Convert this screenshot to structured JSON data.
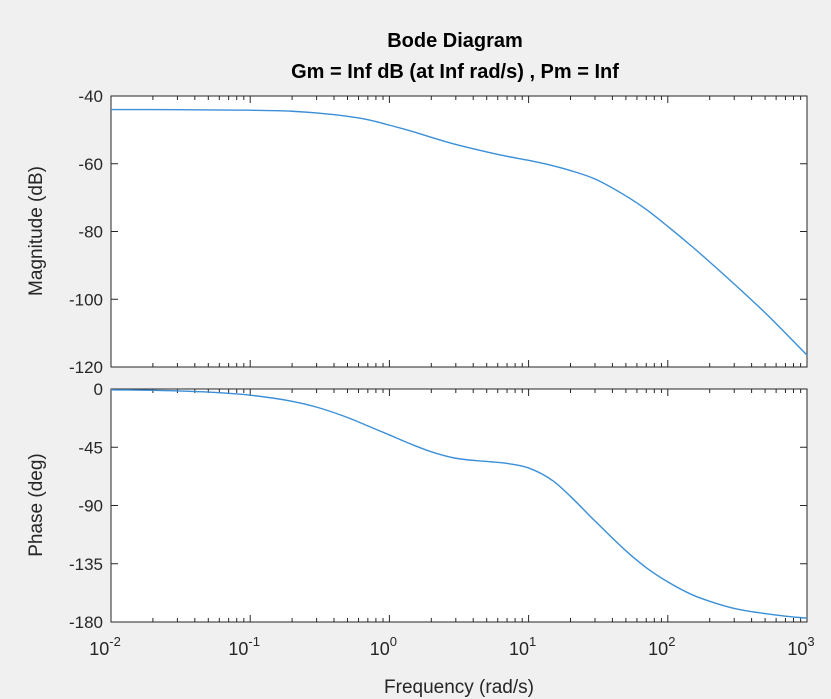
{
  "chart_data": [
    {
      "type": "line",
      "panel": "magnitude",
      "title": "Bode Diagram",
      "subtitle": "Gm = Inf dB (at Inf rad/s) ,  Pm = Inf",
      "xlabel": "",
      "ylabel": "Magnitude (dB)",
      "xscale": "log",
      "xlim": [
        0.01,
        1000
      ],
      "ylim": [
        -120,
        -40
      ],
      "yticks": [
        -40,
        -60,
        -80,
        -100,
        -120
      ],
      "ytick_labels": [
        "-40",
        "-60",
        "-80",
        "-100",
        "-120"
      ],
      "grid": false,
      "color": "#3b8fd6",
      "x": [
        0.01,
        0.02,
        0.05,
        0.1,
        0.2,
        0.3,
        0.5,
        0.7,
        1,
        1.5,
        2,
        3,
        5,
        7,
        10,
        15,
        20,
        30,
        50,
        70,
        100,
        150,
        200,
        300,
        500,
        700,
        1000
      ],
      "y": [
        -44.0,
        -44.0,
        -44.1,
        -44.2,
        -44.5,
        -45.0,
        -46.0,
        -47.0,
        -48.6,
        -50.6,
        -52.2,
        -54.3,
        -56.5,
        -57.8,
        -59.0,
        -60.6,
        -62.0,
        -64.5,
        -69.5,
        -73.5,
        -78.5,
        -84.5,
        -89.0,
        -95.5,
        -104.0,
        -110.0,
        -116.5
      ]
    },
    {
      "type": "line",
      "panel": "phase",
      "xlabel": "Frequency  (rad/s)",
      "ylabel": "Phase (deg)",
      "xscale": "log",
      "xlim": [
        0.01,
        1000
      ],
      "ylim": [
        -180,
        0
      ],
      "yticks": [
        0,
        -45,
        -90,
        -135,
        -180
      ],
      "ytick_labels": [
        "0",
        "-45",
        "-90",
        "-135",
        "-180"
      ],
      "xticks": [
        0.01,
        0.1,
        1,
        10,
        100,
        1000
      ],
      "xtick_labels": [
        {
          "base": "10",
          "exp": "-2"
        },
        {
          "base": "10",
          "exp": "-1"
        },
        {
          "base": "10",
          "exp": "0"
        },
        {
          "base": "10",
          "exp": "1"
        },
        {
          "base": "10",
          "exp": "2"
        },
        {
          "base": "10",
          "exp": "3"
        }
      ],
      "grid": false,
      "color": "#3b8fd6",
      "x": [
        0.01,
        0.02,
        0.05,
        0.1,
        0.2,
        0.3,
        0.5,
        0.7,
        1,
        1.5,
        2,
        3,
        5,
        7,
        10,
        15,
        20,
        30,
        50,
        70,
        100,
        150,
        200,
        300,
        500,
        700,
        1000
      ],
      "y": [
        -0.6,
        -1.0,
        -2.4,
        -4.8,
        -9.5,
        -14.0,
        -22.0,
        -28.5,
        -35.5,
        -43.5,
        -48.5,
        -53.5,
        -56.0,
        -57.5,
        -61.0,
        -71.0,
        -83.0,
        -102.0,
        -125.0,
        -138.0,
        -149.0,
        -159.0,
        -164.0,
        -169.5,
        -173.5,
        -175.5,
        -177.0
      ]
    }
  ]
}
